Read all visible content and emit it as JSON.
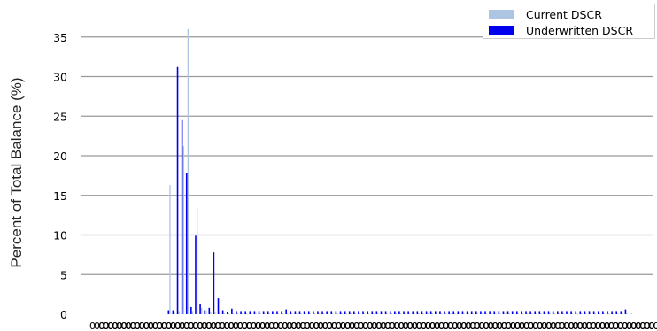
{
  "chart_data": {
    "type": "bar",
    "title": "",
    "xlabel": "",
    "ylabel": "Percent of Total Balance (%)",
    "ylim": [
      0,
      37
    ],
    "yticks": [
      0,
      5,
      10,
      15,
      20,
      25,
      30,
      35
    ],
    "grid": "horizontal",
    "legend_position": "top-right",
    "x_tick_labels_legible": false,
    "x_tick_label_first": "0.0",
    "categories_count": 120,
    "series": [
      {
        "name": "Current DSCR",
        "color": "#aec4e3",
        "values": [
          0,
          0,
          0,
          0,
          0,
          0,
          0,
          0,
          0,
          0,
          0,
          16.3,
          0.2,
          0.4,
          21.2,
          36.0,
          0.4,
          13.5,
          0.8,
          0.5,
          0.3,
          0.2,
          0.2,
          0.1,
          0.1,
          0.1,
          0.1,
          0.1,
          0.1,
          0.1,
          0.1,
          0.1,
          0.1,
          0.1,
          0.1,
          0.1,
          0.1,
          0.1,
          0.1,
          0.1,
          0.1,
          0.1,
          0.1,
          0.1,
          0.1,
          0.1,
          0.1,
          0.1,
          0.1,
          0.1,
          0.1,
          0.1,
          0.1,
          0.1,
          0.1,
          0.1,
          0.1,
          0.1,
          0.1,
          0.1,
          0.1,
          0.1,
          0.1,
          0.1,
          0.1,
          0.1,
          0.1,
          0.1,
          0.1,
          0.1,
          0.1,
          0.1,
          0.1,
          0.1,
          0.1,
          0.1,
          0.1,
          0.1,
          0.1,
          0.1,
          0.1,
          0.1,
          0.1,
          0.1,
          0.1,
          0.1,
          0.1,
          0.1,
          0.1,
          0.1,
          0.1,
          0.1,
          0.1,
          0.1,
          0.1,
          0.1,
          0.1,
          0.1,
          0.1,
          0.1,
          0.1,
          0.1,
          0.1,
          0.1,
          0.1,
          0.1,
          0.1,
          0.1,
          0.1,
          0.1,
          0.1,
          0.1,
          0.1,
          0.1,
          0,
          0,
          0,
          0,
          0,
          0
        ]
      },
      {
        "name": "Underwritten DSCR",
        "color": "#0000ee",
        "values": [
          0,
          0,
          0,
          0,
          0,
          0,
          0,
          0,
          0,
          0,
          0,
          0.5,
          0.5,
          31.2,
          24.5,
          17.8,
          0.9,
          9.9,
          1.3,
          0.5,
          0.8,
          7.8,
          2.0,
          0.5,
          0.3,
          0.7,
          0.4,
          0.4,
          0.4,
          0.4,
          0.4,
          0.4,
          0.4,
          0.4,
          0.4,
          0.4,
          0.4,
          0.6,
          0.4,
          0.4,
          0.4,
          0.4,
          0.4,
          0.4,
          0.4,
          0.4,
          0.4,
          0.4,
          0.4,
          0.4,
          0.4,
          0.4,
          0.4,
          0.4,
          0.4,
          0.4,
          0.4,
          0.4,
          0.4,
          0.4,
          0.4,
          0.4,
          0.4,
          0.4,
          0.4,
          0.4,
          0.4,
          0.4,
          0.4,
          0.4,
          0.4,
          0.4,
          0.4,
          0.4,
          0.4,
          0.4,
          0.4,
          0.4,
          0.4,
          0.4,
          0.4,
          0.4,
          0.4,
          0.4,
          0.4,
          0.4,
          0.4,
          0.4,
          0.4,
          0.4,
          0.4,
          0.4,
          0.4,
          0.4,
          0.4,
          0.4,
          0.4,
          0.4,
          0.4,
          0.4,
          0.4,
          0.4,
          0.4,
          0.4,
          0.4,
          0.4,
          0.4,
          0.4,
          0.4,
          0.4,
          0.4,
          0.4,
          0.6,
          0,
          0,
          0,
          0,
          0,
          0
        ]
      }
    ]
  }
}
